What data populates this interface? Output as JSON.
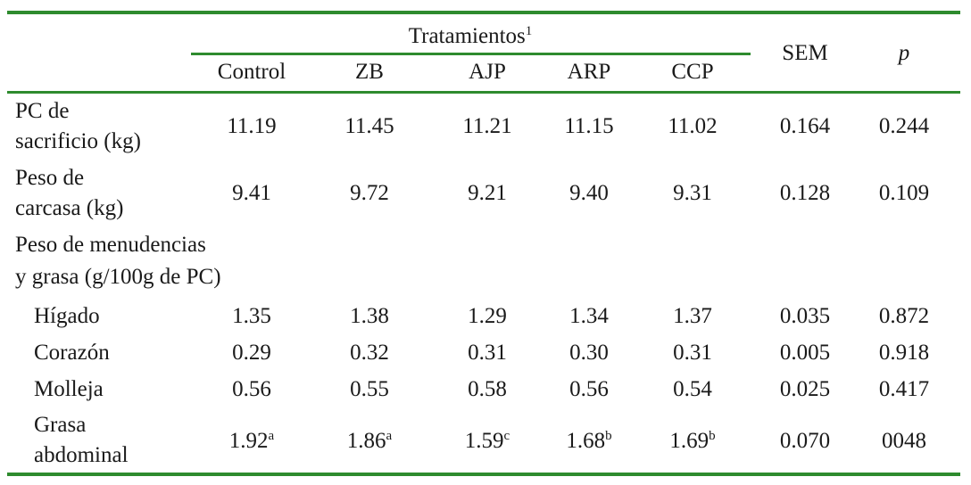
{
  "colors": {
    "rule": "#2e8b2e",
    "text": "#1a1a1a"
  },
  "header": {
    "group_label": "Tratamientos",
    "group_sup": "1",
    "columns": [
      "Control",
      "ZB",
      "AJP",
      "ARP",
      "CCP"
    ],
    "sem": "SEM",
    "p": "p"
  },
  "rows": [
    {
      "label_lines": [
        "PC de",
        "sacrificio (kg)"
      ],
      "values": [
        {
          "v": "11.19",
          "sup": ""
        },
        {
          "v": "11.45",
          "sup": ""
        },
        {
          "v": "11.21",
          "sup": ""
        },
        {
          "v": "11.15",
          "sup": ""
        },
        {
          "v": "11.02",
          "sup": ""
        }
      ],
      "sem": "0.164",
      "p": "0.244"
    },
    {
      "label_lines": [
        "Peso de",
        "carcasa (kg)"
      ],
      "values": [
        {
          "v": "9.41",
          "sup": ""
        },
        {
          "v": "9.72",
          "sup": ""
        },
        {
          "v": "9.21",
          "sup": ""
        },
        {
          "v": "9.40",
          "sup": ""
        },
        {
          "v": "9.31",
          "sup": ""
        }
      ],
      "sem": "0.128",
      "p": "0.109"
    },
    {
      "label_lines": [
        "Peso de menudencias",
        "y grasa (g/100g de PC)"
      ]
    },
    {
      "label_lines": [
        "Hígado"
      ],
      "values": [
        {
          "v": "1.35",
          "sup": ""
        },
        {
          "v": "1.38",
          "sup": ""
        },
        {
          "v": "1.29",
          "sup": ""
        },
        {
          "v": "1.34",
          "sup": ""
        },
        {
          "v": "1.37",
          "sup": ""
        }
      ],
      "sem": "0.035",
      "p": "0.872"
    },
    {
      "label_lines": [
        "Corazón"
      ],
      "values": [
        {
          "v": "0.29",
          "sup": ""
        },
        {
          "v": "0.32",
          "sup": ""
        },
        {
          "v": "0.31",
          "sup": ""
        },
        {
          "v": "0.30",
          "sup": ""
        },
        {
          "v": "0.31",
          "sup": ""
        }
      ],
      "sem": "0.005",
      "p": "0.918"
    },
    {
      "label_lines": [
        "Molleja"
      ],
      "values": [
        {
          "v": "0.56",
          "sup": ""
        },
        {
          "v": "0.55",
          "sup": ""
        },
        {
          "v": "0.58",
          "sup": ""
        },
        {
          "v": "0.56",
          "sup": ""
        },
        {
          "v": "0.54",
          "sup": ""
        }
      ],
      "sem": "0.025",
      "p": "0.417"
    },
    {
      "label_lines": [
        "Grasa",
        "abdominal"
      ],
      "values": [
        {
          "v": "1.92",
          "sup": "a"
        },
        {
          "v": "1.86",
          "sup": "a"
        },
        {
          "v": "1.59",
          "sup": "c"
        },
        {
          "v": "1.68",
          "sup": "b"
        },
        {
          "v": "1.69",
          "sup": "b"
        }
      ],
      "sem": "0.070",
      "p": "0048"
    }
  ]
}
